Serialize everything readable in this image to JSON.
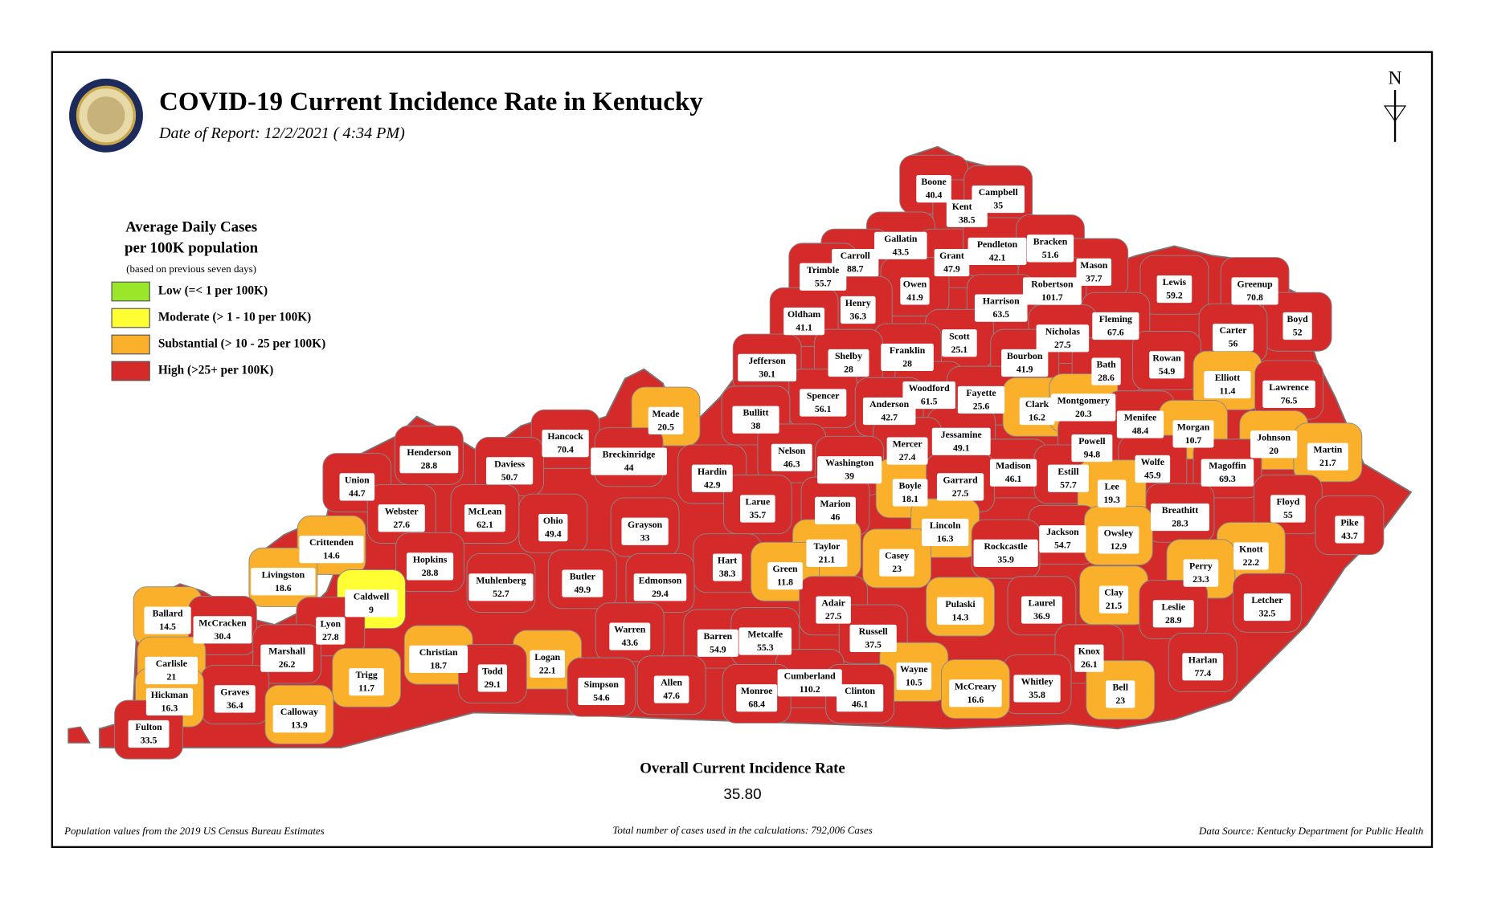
{
  "header": {
    "title": "COVID-19 Current Incidence Rate in Kentucky",
    "subtitle": "Date of Report: 12/2/2021 ( 4:34 PM)"
  },
  "legend": {
    "title": [
      "Average Daily Cases",
      "per 100K population"
    ],
    "note": "(based on previous seven days)",
    "items": [
      {
        "label": "Low (=< 1 per 100K)",
        "color": "#99e62a"
      },
      {
        "label": "Moderate (> 1 - 10 per 100K)",
        "color": "#ffff33"
      },
      {
        "label": "Substantial (> 10 - 25 per 100K)",
        "color": "#fbb02c"
      },
      {
        "label": "High (>25+ per 100K)",
        "color": "#d42a2a"
      }
    ]
  },
  "counties": [
    {
      "name": "Boone",
      "value": 40.4,
      "color": "#d42a2a"
    },
    {
      "name": "Kenton",
      "value": 38.5,
      "color": "#d42a2a"
    },
    {
      "name": "Campbell",
      "value": 35,
      "color": "#d42a2a"
    },
    {
      "name": "Gallatin",
      "value": 43.5,
      "color": "#d42a2a"
    },
    {
      "name": "Carroll",
      "value": 88.7,
      "color": "#d42a2a"
    },
    {
      "name": "Trimble",
      "value": 55.7,
      "color": "#d42a2a"
    },
    {
      "name": "Grant",
      "value": 47.9,
      "color": "#d42a2a"
    },
    {
      "name": "Pendleton",
      "value": 42.1,
      "color": "#d42a2a"
    },
    {
      "name": "Bracken",
      "value": 51.6,
      "color": "#d42a2a"
    },
    {
      "name": "Mason",
      "value": 37.7,
      "color": "#d42a2a"
    },
    {
      "name": "Robertson",
      "value": 101.7,
      "color": "#d42a2a"
    },
    {
      "name": "Owen",
      "value": 41.9,
      "color": "#d42a2a"
    },
    {
      "name": "Henry",
      "value": 36.3,
      "color": "#d42a2a"
    },
    {
      "name": "Oldham",
      "value": 41.1,
      "color": "#d42a2a"
    },
    {
      "name": "Harrison",
      "value": 63.5,
      "color": "#d42a2a"
    },
    {
      "name": "Lewis",
      "value": 59.2,
      "color": "#d42a2a"
    },
    {
      "name": "Greenup",
      "value": 70.8,
      "color": "#d42a2a"
    },
    {
      "name": "Fleming",
      "value": 67.6,
      "color": "#d42a2a"
    },
    {
      "name": "Boyd",
      "value": 52,
      "color": "#d42a2a"
    },
    {
      "name": "Carter",
      "value": 56,
      "color": "#d42a2a"
    },
    {
      "name": "Scott",
      "value": 25.1,
      "color": "#d42a2a"
    },
    {
      "name": "Nicholas",
      "value": 27.5,
      "color": "#d42a2a"
    },
    {
      "name": "Franklin",
      "value": 28,
      "color": "#d42a2a"
    },
    {
      "name": "Shelby",
      "value": 28,
      "color": "#d42a2a"
    },
    {
      "name": "Jefferson",
      "value": 30.1,
      "color": "#d42a2a"
    },
    {
      "name": "Bourbon",
      "value": 41.9,
      "color": "#d42a2a"
    },
    {
      "name": "Bath",
      "value": 28.6,
      "color": "#d42a2a"
    },
    {
      "name": "Rowan",
      "value": 54.9,
      "color": "#d42a2a"
    },
    {
      "name": "Woodford",
      "value": 61.5,
      "color": "#d42a2a"
    },
    {
      "name": "Elliott",
      "value": 11.4,
      "color": "#fbb02c"
    },
    {
      "name": "Lawrence",
      "value": 76.5,
      "color": "#d42a2a"
    },
    {
      "name": "Spencer",
      "value": 56.1,
      "color": "#d42a2a"
    },
    {
      "name": "Anderson",
      "value": 42.7,
      "color": "#d42a2a"
    },
    {
      "name": "Fayette",
      "value": 25.6,
      "color": "#d42a2a"
    },
    {
      "name": "Clark",
      "value": 16.2,
      "color": "#fbb02c"
    },
    {
      "name": "Montgomery",
      "value": 20.3,
      "color": "#fbb02c"
    },
    {
      "name": "Bullitt",
      "value": 38,
      "color": "#d42a2a"
    },
    {
      "name": "Menifee",
      "value": 48.4,
      "color": "#d42a2a"
    },
    {
      "name": "Morgan",
      "value": 10.7,
      "color": "#fbb02c"
    },
    {
      "name": "Johnson",
      "value": 20,
      "color": "#fbb02c"
    },
    {
      "name": "Martin",
      "value": 21.7,
      "color": "#fbb02c"
    },
    {
      "name": "Meade",
      "value": 20.5,
      "color": "#fbb02c"
    },
    {
      "name": "Hancock",
      "value": 70.4,
      "color": "#d42a2a"
    },
    {
      "name": "Jessamine",
      "value": 49.1,
      "color": "#d42a2a"
    },
    {
      "name": "Mercer",
      "value": 27.4,
      "color": "#d42a2a"
    },
    {
      "name": "Powell",
      "value": 94.8,
      "color": "#d42a2a"
    },
    {
      "name": "Henderson",
      "value": 28.8,
      "color": "#d42a2a"
    },
    {
      "name": "Breckinridge",
      "value": 44,
      "color": "#d42a2a"
    },
    {
      "name": "Nelson",
      "value": 46.3,
      "color": "#d42a2a"
    },
    {
      "name": "Washington",
      "value": 39,
      "color": "#d42a2a"
    },
    {
      "name": "Daviess",
      "value": 50.7,
      "color": "#d42a2a"
    },
    {
      "name": "Hardin",
      "value": 42.9,
      "color": "#d42a2a"
    },
    {
      "name": "Madison",
      "value": 46.1,
      "color": "#d42a2a"
    },
    {
      "name": "Estill",
      "value": 57.7,
      "color": "#d42a2a"
    },
    {
      "name": "Wolfe",
      "value": 45.9,
      "color": "#d42a2a"
    },
    {
      "name": "Magoffin",
      "value": 69.3,
      "color": "#d42a2a"
    },
    {
      "name": "Union",
      "value": 44.7,
      "color": "#d42a2a"
    },
    {
      "name": "Boyle",
      "value": 18.1,
      "color": "#fbb02c"
    },
    {
      "name": "Garrard",
      "value": 27.5,
      "color": "#d42a2a"
    },
    {
      "name": "Lee",
      "value": 19.3,
      "color": "#fbb02c"
    },
    {
      "name": "Breathitt",
      "value": 28.3,
      "color": "#d42a2a"
    },
    {
      "name": "Floyd",
      "value": 55,
      "color": "#d42a2a"
    },
    {
      "name": "Webster",
      "value": 27.6,
      "color": "#d42a2a"
    },
    {
      "name": "McLean",
      "value": 62.1,
      "color": "#d42a2a"
    },
    {
      "name": "Larue",
      "value": 35.7,
      "color": "#d42a2a"
    },
    {
      "name": "Marion",
      "value": 46,
      "color": "#d42a2a"
    },
    {
      "name": "Lincoln",
      "value": 16.3,
      "color": "#fbb02c"
    },
    {
      "name": "Ohio",
      "value": 49.4,
      "color": "#d42a2a"
    },
    {
      "name": "Pike",
      "value": 43.7,
      "color": "#d42a2a"
    },
    {
      "name": "Grayson",
      "value": 33,
      "color": "#d42a2a"
    },
    {
      "name": "Jackson",
      "value": 54.7,
      "color": "#d42a2a"
    },
    {
      "name": "Owsley",
      "value": 12.9,
      "color": "#fbb02c"
    },
    {
      "name": "Crittenden",
      "value": 14.6,
      "color": "#fbb02c"
    },
    {
      "name": "Taylor",
      "value": 21.1,
      "color": "#fbb02c"
    },
    {
      "name": "Casey",
      "value": 23,
      "color": "#fbb02c"
    },
    {
      "name": "Rockcastle",
      "value": 35.9,
      "color": "#d42a2a"
    },
    {
      "name": "Knott",
      "value": 22.2,
      "color": "#fbb02c"
    },
    {
      "name": "Hopkins",
      "value": 28.8,
      "color": "#d42a2a"
    },
    {
      "name": "Perry",
      "value": 23.3,
      "color": "#fbb02c"
    },
    {
      "name": "Hart",
      "value": 38.3,
      "color": "#d42a2a"
    },
    {
      "name": "Livingston",
      "value": 18.6,
      "color": "#fbb02c"
    },
    {
      "name": "Green",
      "value": 11.8,
      "color": "#fbb02c"
    },
    {
      "name": "Muhlenberg",
      "value": 52.7,
      "color": "#d42a2a"
    },
    {
      "name": "Butler",
      "value": 49.9,
      "color": "#d42a2a"
    },
    {
      "name": "Edmonson",
      "value": 29.4,
      "color": "#d42a2a"
    },
    {
      "name": "Caldwell",
      "value": 9,
      "color": "#ffff33"
    },
    {
      "name": "Clay",
      "value": 21.5,
      "color": "#fbb02c"
    },
    {
      "name": "Pulaski",
      "value": 14.3,
      "color": "#fbb02c"
    },
    {
      "name": "Laurel",
      "value": 36.9,
      "color": "#d42a2a"
    },
    {
      "name": "Leslie",
      "value": 28.9,
      "color": "#d42a2a"
    },
    {
      "name": "Letcher",
      "value": 32.5,
      "color": "#d42a2a"
    },
    {
      "name": "Adair",
      "value": 27.5,
      "color": "#d42a2a"
    },
    {
      "name": "Ballard",
      "value": 14.5,
      "color": "#fbb02c"
    },
    {
      "name": "McCracken",
      "value": 30.4,
      "color": "#d42a2a"
    },
    {
      "name": "Lyon",
      "value": 27.8,
      "color": "#d42a2a"
    },
    {
      "name": "Warren",
      "value": 43.6,
      "color": "#d42a2a"
    },
    {
      "name": "Russell",
      "value": 37.5,
      "color": "#d42a2a"
    },
    {
      "name": "Barren",
      "value": 54.9,
      "color": "#d42a2a"
    },
    {
      "name": "Metcalfe",
      "value": 55.3,
      "color": "#d42a2a"
    },
    {
      "name": "Christian",
      "value": 18.7,
      "color": "#fbb02c"
    },
    {
      "name": "Marshall",
      "value": 26.2,
      "color": "#d42a2a"
    },
    {
      "name": "Knox",
      "value": 26.1,
      "color": "#d42a2a"
    },
    {
      "name": "Harlan",
      "value": 77.4,
      "color": "#d42a2a"
    },
    {
      "name": "Logan",
      "value": 22.1,
      "color": "#fbb02c"
    },
    {
      "name": "Carlisle",
      "value": 21,
      "color": "#fbb02c"
    },
    {
      "name": "Trigg",
      "value": 11.7,
      "color": "#fbb02c"
    },
    {
      "name": "Todd",
      "value": 29.1,
      "color": "#d42a2a"
    },
    {
      "name": "Wayne",
      "value": 10.5,
      "color": "#fbb02c"
    },
    {
      "name": "Simpson",
      "value": 54.6,
      "color": "#d42a2a"
    },
    {
      "name": "Allen",
      "value": 47.6,
      "color": "#d42a2a"
    },
    {
      "name": "Cumberland",
      "value": 110.2,
      "color": "#d42a2a"
    },
    {
      "name": "Whitley",
      "value": 35.8,
      "color": "#d42a2a"
    },
    {
      "name": "McCreary",
      "value": 16.6,
      "color": "#fbb02c"
    },
    {
      "name": "Bell",
      "value": 23,
      "color": "#fbb02c"
    },
    {
      "name": "Graves",
      "value": 36.4,
      "color": "#d42a2a"
    },
    {
      "name": "Hickman",
      "value": 16.3,
      "color": "#fbb02c"
    },
    {
      "name": "Monroe",
      "value": 68.4,
      "color": "#d42a2a"
    },
    {
      "name": "Clinton",
      "value": 46.1,
      "color": "#d42a2a"
    },
    {
      "name": "Calloway",
      "value": 13.9,
      "color": "#fbb02c"
    },
    {
      "name": "Fulton",
      "value": 33.5,
      "color": "#d42a2a"
    }
  ],
  "summary": {
    "label": "Overall Current Incidence Rate",
    "value": "35.80"
  },
  "footer": {
    "left": "Population values from the 2019 US Census Bureau Estimates",
    "center": "Total number of cases used in the calculations: 792,006 Cases",
    "right": "Data Source: Kentucky Department for Public Health"
  },
  "north_label": "N"
}
